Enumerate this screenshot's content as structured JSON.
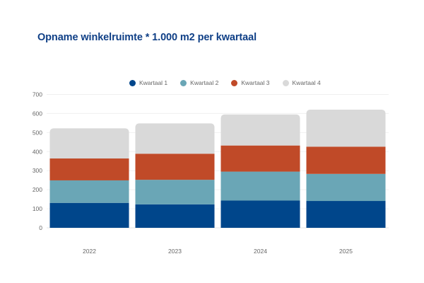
{
  "chart_data": {
    "type": "bar",
    "stacked": true,
    "title": "Opname winkelruimte * 1.000 m2 per kwartaal",
    "xlabel": "",
    "ylabel": "",
    "categories": [
      "2022",
      "2023",
      "2024",
      "2025"
    ],
    "series": [
      {
        "name": "Kwartaal 1",
        "color": "#00468b",
        "values": [
          131,
          123,
          143,
          141
        ]
      },
      {
        "name": "Kwartaal 2",
        "color": "#6aa6b6",
        "values": [
          118,
          129,
          152,
          142
        ]
      },
      {
        "name": "Kwartaal 3",
        "color": "#c04a28",
        "values": [
          115,
          137,
          137,
          143
        ]
      },
      {
        "name": "Kwartaal 4",
        "color": "#d9d9d9",
        "values": [
          158,
          159,
          163,
          194
        ]
      }
    ],
    "ylim": [
      0,
      700
    ],
    "yticks": [
      0,
      100,
      200,
      300,
      400,
      500,
      600,
      700
    ],
    "grid": true,
    "legend_position": "top-center"
  }
}
